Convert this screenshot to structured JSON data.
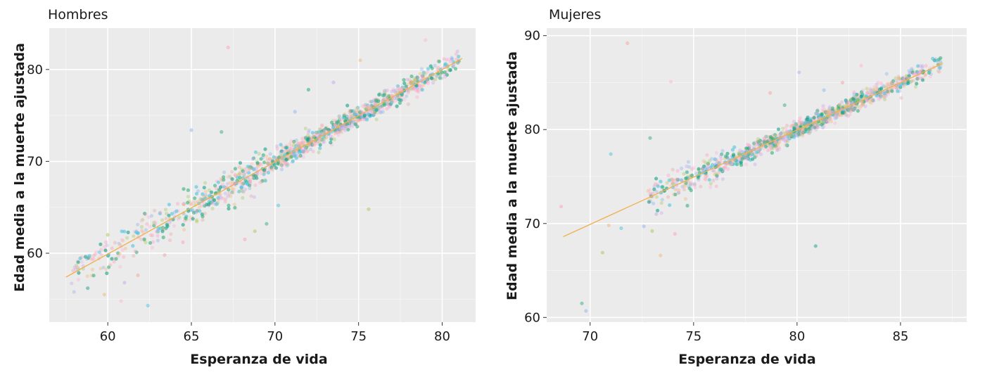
{
  "chart_data": [
    {
      "type": "scatter",
      "title": "Hombres",
      "xlabel": "Esperanza de vida",
      "ylabel": "Edad media a la muerte ajustada",
      "xlim": [
        56.5,
        82
      ],
      "ylim": [
        52.5,
        84.5
      ],
      "xticks": [
        60,
        65,
        70,
        75,
        80
      ],
      "yticks": [
        60,
        70,
        80
      ],
      "grid": true,
      "background": "#ebebeb",
      "trend_line": {
        "x": [
          57.5,
          81.2
        ],
        "y": [
          57.4,
          81.2
        ],
        "color": "#f0b050"
      },
      "point_colors": [
        "#ff9ec0",
        "#f5a3a3",
        "#f0b97a",
        "#a8c85a",
        "#34b07a",
        "#16a086",
        "#4cc3dd",
        "#8fb4ee",
        "#c9a5ec",
        "#ffb3d9"
      ],
      "bulk": {
        "x_range": [
          57.8,
          81.0
        ],
        "density_center": 73.5,
        "spread": 0.55,
        "count": 1200
      },
      "outliers": [
        {
          "x": 67.2,
          "y": 82.4
        },
        {
          "x": 75.6,
          "y": 64.8
        },
        {
          "x": 62.4,
          "y": 54.3
        },
        {
          "x": 60.8,
          "y": 54.8
        },
        {
          "x": 59.8,
          "y": 55.5
        },
        {
          "x": 58.8,
          "y": 56.2
        },
        {
          "x": 61.0,
          "y": 56.8
        },
        {
          "x": 61.8,
          "y": 57.6
        },
        {
          "x": 69.5,
          "y": 63.2
        },
        {
          "x": 65.0,
          "y": 73.4
        },
        {
          "x": 68.2,
          "y": 61.5
        },
        {
          "x": 68.8,
          "y": 62.4
        },
        {
          "x": 70.2,
          "y": 65.2
        },
        {
          "x": 79.0,
          "y": 83.2
        },
        {
          "x": 75.1,
          "y": 81.0
        },
        {
          "x": 72.0,
          "y": 77.8
        },
        {
          "x": 73.5,
          "y": 78.6
        },
        {
          "x": 63.4,
          "y": 59.8
        },
        {
          "x": 66.8,
          "y": 73.2
        },
        {
          "x": 71.2,
          "y": 75.4
        },
        {
          "x": 64.5,
          "y": 61.2
        },
        {
          "x": 60.0,
          "y": 62.0
        },
        {
          "x": 59.5,
          "y": 60.1
        },
        {
          "x": 78.5,
          "y": 77.0
        }
      ]
    },
    {
      "type": "scatter",
      "title": "Mujeres",
      "xlabel": "Esperanza de vida",
      "ylabel": "Edad media a la muerte ajustada",
      "xlim": [
        67.9,
        88.2
      ],
      "ylim": [
        59.5,
        90.8
      ],
      "xticks": [
        70,
        75,
        80,
        85
      ],
      "yticks": [
        60,
        70,
        80,
        90
      ],
      "grid": true,
      "background": "#ebebeb",
      "trend_line": {
        "x": [
          68.7,
          87.0
        ],
        "y": [
          68.6,
          87.0
        ],
        "color": "#f0b050"
      },
      "point_colors": [
        "#ff9ec0",
        "#f5a3a3",
        "#f0b97a",
        "#a8c85a",
        "#34b07a",
        "#16a086",
        "#4cc3dd",
        "#8fb4ee",
        "#c9a5ec",
        "#ffb3d9"
      ],
      "bulk": {
        "x_range": [
          72.8,
          87.0
        ],
        "density_center": 80.5,
        "spread": 0.45,
        "count": 1100
      },
      "outliers": [
        {
          "x": 71.8,
          "y": 89.2
        },
        {
          "x": 69.6,
          "y": 61.5
        },
        {
          "x": 69.8,
          "y": 60.7
        },
        {
          "x": 68.6,
          "y": 71.8
        },
        {
          "x": 70.6,
          "y": 66.9
        },
        {
          "x": 71.0,
          "y": 77.4
        },
        {
          "x": 73.9,
          "y": 85.1
        },
        {
          "x": 73.4,
          "y": 66.6
        },
        {
          "x": 80.9,
          "y": 67.6
        },
        {
          "x": 80.1,
          "y": 86.1
        },
        {
          "x": 78.7,
          "y": 83.9
        },
        {
          "x": 72.9,
          "y": 79.1
        },
        {
          "x": 72.6,
          "y": 69.7
        },
        {
          "x": 74.1,
          "y": 68.9
        },
        {
          "x": 73.0,
          "y": 69.2
        },
        {
          "x": 71.5,
          "y": 69.5
        },
        {
          "x": 83.1,
          "y": 86.8
        },
        {
          "x": 70.9,
          "y": 69.8
        },
        {
          "x": 74.7,
          "y": 71.9
        },
        {
          "x": 73.2,
          "y": 71.0
        },
        {
          "x": 82.2,
          "y": 85.0
        },
        {
          "x": 79.4,
          "y": 82.6
        },
        {
          "x": 81.3,
          "y": 84.2
        }
      ]
    }
  ]
}
